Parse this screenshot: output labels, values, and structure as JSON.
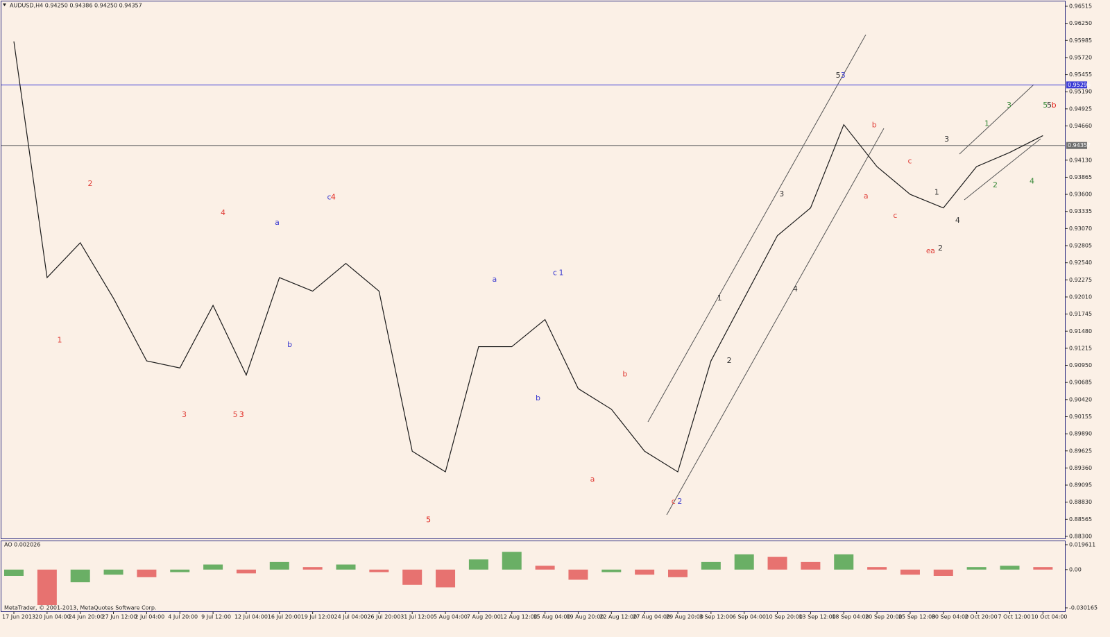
{
  "chart_data": [
    {
      "type": "line",
      "title": "AUDUSD,H4  0.94250 0.94386 0.94250 0.94357",
      "color": "#1a1a1a",
      "categories": [
        "17 Jun 2013",
        "20 Jun 04:00",
        "24 Jun 20:00",
        "27 Jun 12:00",
        "2 Jul 04:00",
        "4 Jul 20:00",
        "9 Jul 12:00",
        "12 Jul 04:00",
        "16 Jul 20:00",
        "19 Jul 12:00",
        "24 Jul 04:00",
        "26 Jul 20:00",
        "31 Jul 12:00",
        "5 Aug 04:00",
        "7 Aug 20:00",
        "12 Aug 12:00",
        "15 Aug 04:00",
        "19 Aug 20:00",
        "22 Aug 12:00",
        "27 Aug 04:00",
        "29 Aug 20:00",
        "3 Sep 12:00",
        "6 Sep 04:00",
        "10 Sep 20:00",
        "13 Sep 12:00",
        "18 Sep 04:00",
        "20 Sep 20:00",
        "25 Sep 12:00",
        "30 Sep 04:00",
        "2 Oct 20:00",
        "7 Oct 12:00",
        "10 Oct 04:00"
      ],
      "values": [
        0.9597,
        0.9231,
        0.9285,
        0.9199,
        0.9102,
        0.9091,
        0.9188,
        0.908,
        0.9231,
        0.921,
        0.9253,
        0.921,
        0.8962,
        0.893,
        0.9124,
        0.9124,
        0.9166,
        0.9059,
        0.9027,
        0.8962,
        0.893,
        0.9102,
        0.9199,
        0.9296,
        0.9339,
        0.9468,
        0.9403,
        0.936,
        0.9339,
        0.9403,
        0.9425,
        0.9451
      ],
      "ylim": [
        0.883,
        0.96515
      ],
      "yticks": [
        0.96515,
        {
          "value": 0.9625,
          "label": "0.96250"
        },
        0.95985,
        {
          "value": 0.9572,
          "label": "0.95720"
        },
        0.95455,
        {
          "value": 0.9519,
          "label": "0.95190"
        },
        0.94925,
        {
          "value": 0.9466,
          "label": "0.94660"
        },
        {
          "value": 0.9413,
          "label": "0.94130"
        },
        0.93865,
        {
          "value": 0.936,
          "label": "0.93600"
        },
        0.93335,
        {
          "value": 0.9307,
          "label": "0.93070"
        },
        0.92805,
        {
          "value": 0.9254,
          "label": "0.92540"
        },
        0.92275,
        {
          "value": 0.9201,
          "label": "0.92010"
        },
        0.91745,
        {
          "value": 0.9148,
          "label": "0.91480"
        },
        0.91215,
        {
          "value": 0.9095,
          "label": "0.90950"
        },
        0.90685,
        {
          "value": 0.9042,
          "label": "0.90420"
        },
        0.90155,
        {
          "value": 0.8989,
          "label": "0.89890"
        },
        0.89625,
        {
          "value": 0.8936,
          "label": "0.89360"
        },
        0.89095,
        {
          "value": 0.8883,
          "label": "0.88830"
        },
        0.88565,
        {
          "value": 0.883,
          "label": "0.88300"
        }
      ],
      "hlines": [
        {
          "value": 0.95296,
          "color": "#3b3bd6"
        },
        {
          "value": 0.94357,
          "color": "#6e6e6e"
        }
      ],
      "annotations": [
        {
          "text": "1",
          "at": 1.38,
          "y": 0.9134,
          "color": "#e0403a"
        },
        {
          "text": "2",
          "at": 2.3,
          "y": 0.9376,
          "color": "#e0403a"
        },
        {
          "text": "3",
          "at": 5.13,
          "y": 0.9018,
          "color": "#e0403a"
        },
        {
          "text": "4",
          "at": 6.3,
          "y": 0.9331,
          "color": "#e0403a"
        },
        {
          "text": "5",
          "at": 6.67,
          "y": 0.9018,
          "color": "#e0403a"
        },
        {
          "text": "3",
          "at": 6.86,
          "y": 0.9018,
          "color": "#e0201a"
        },
        {
          "text": "a",
          "at": 7.93,
          "y": 0.9316,
          "color": "#3a3ad0"
        },
        {
          "text": "b",
          "at": 8.31,
          "y": 0.9127,
          "color": "#3a3ad0"
        },
        {
          "text": "c",
          "at": 9.5,
          "y": 0.9355,
          "color": "#3a3ad0"
        },
        {
          "text": "4",
          "at": 9.62,
          "y": 0.9355,
          "color": "#e0201a"
        },
        {
          "text": "5",
          "at": 12.49,
          "y": 0.8855,
          "color": "#e0201a"
        },
        {
          "text": "a",
          "at": 14.48,
          "y": 0.9228,
          "color": "#3a3ad0"
        },
        {
          "text": "b",
          "at": 15.79,
          "y": 0.9044,
          "color": "#3a3ad0"
        },
        {
          "text": "c",
          "at": 16.3,
          "y": 0.9238,
          "color": "#3a3ad0"
        },
        {
          "text": "1",
          "at": 16.49,
          "y": 0.9238,
          "color": "#3a3ad0"
        },
        {
          "text": "a",
          "at": 17.43,
          "y": 0.8918,
          "color": "#e0403a"
        },
        {
          "text": "b",
          "at": 18.41,
          "y": 0.9081,
          "color": "#e0403a"
        },
        {
          "text": "c",
          "at": 19.87,
          "y": 0.8884,
          "color": "#e0403a"
        },
        {
          "text": "2",
          "at": 20.06,
          "y": 0.8884,
          "color": "#3a3ad0"
        },
        {
          "text": "1",
          "at": 21.26,
          "y": 0.9199,
          "color": "#333333"
        },
        {
          "text": "2",
          "at": 21.55,
          "y": 0.9102,
          "color": "#333333"
        },
        {
          "text": "3",
          "at": 23.13,
          "y": 0.936,
          "color": "#333333"
        },
        {
          "text": "4",
          "at": 23.54,
          "y": 0.9213,
          "color": "#333333"
        },
        {
          "text": "5",
          "at": 24.83,
          "y": 0.9544,
          "color": "#333333"
        },
        {
          "text": "3",
          "at": 24.98,
          "y": 0.9544,
          "color": "#3a3ad0"
        },
        {
          "text": "a",
          "at": 25.67,
          "y": 0.9357,
          "color": "#e0403a"
        },
        {
          "text": "b",
          "at": 25.92,
          "y": 0.9467,
          "color": "#e0403a"
        },
        {
          "text": "c",
          "at": 26.55,
          "y": 0.9327,
          "color": "#e0403a"
        },
        {
          "text": "c",
          "at": 26.99,
          "y": 0.9411,
          "color": "#e0403a"
        },
        {
          "text": "e",
          "at": 27.55,
          "y": 0.9272,
          "color": "#e0403a"
        },
        {
          "text": "a",
          "at": 27.68,
          "y": 0.9272,
          "color": "#e0403a"
        },
        {
          "text": "1",
          "at": 27.8,
          "y": 0.9363,
          "color": "#333333"
        },
        {
          "text": "2",
          "at": 27.91,
          "y": 0.9276,
          "color": "#333333"
        },
        {
          "text": "3",
          "at": 28.1,
          "y": 0.9445,
          "color": "#333333"
        },
        {
          "text": "4",
          "at": 28.43,
          "y": 0.9319,
          "color": "#333333"
        },
        {
          "text": "1",
          "at": 29.31,
          "y": 0.9469,
          "color": "#3a8a3a"
        },
        {
          "text": "2",
          "at": 29.56,
          "y": 0.9374,
          "color": "#3a8a3a"
        },
        {
          "text": "3",
          "at": 29.98,
          "y": 0.9498,
          "color": "#3a8a3a"
        },
        {
          "text": "4",
          "at": 30.67,
          "y": 0.938,
          "color": "#3a8a3a"
        },
        {
          "text": "5",
          "at": 31.07,
          "y": 0.9498,
          "color": "#3a8a3a"
        },
        {
          "text": "5",
          "at": 31.19,
          "y": 0.9498,
          "color": "#333333"
        },
        {
          "text": "b",
          "at": 31.33,
          "y": 0.9498,
          "color": "#e0201a"
        }
      ]
    },
    {
      "type": "bar",
      "title": "AO 0.002026",
      "colors": {
        "up": "#3a9a3a",
        "down": "#e04848"
      },
      "values": [
        -0.005,
        -0.028,
        -0.01,
        -0.004,
        -0.006,
        -0.002,
        0.004,
        -0.003,
        0.006,
        0.002,
        0.004,
        -0.002,
        -0.012,
        -0.014,
        0.008,
        0.014,
        0.003,
        -0.008,
        -0.002,
        -0.004,
        -0.006,
        0.006,
        0.012,
        0.01,
        0.006,
        0.012,
        0.002,
        -0.004,
        -0.005,
        0.002,
        0.003,
        0.002
      ],
      "ylim": [
        -0.030165,
        0.019611
      ],
      "yticks": [
        0.019611,
        {
          "value": 0,
          "label": "0.00"
        },
        -0.030165
      ]
    }
  ],
  "footer": "MetaTrader, © 2001-2013, MetaQuotes Software Corp."
}
